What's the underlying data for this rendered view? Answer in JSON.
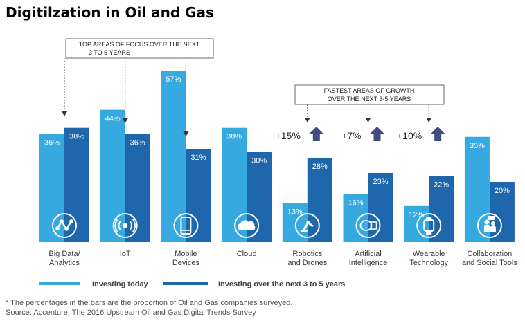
{
  "title": "Digitilzation in Oil and Gas",
  "colors": {
    "today": "#36A9E1",
    "future": "#1F67AD",
    "icon": "#ffffff",
    "arrow": "#3F4E7F",
    "text": "#3a3a3a"
  },
  "chart_data": {
    "type": "bar",
    "categories": [
      [
        "Big Data/",
        "Analytics"
      ],
      [
        "IoT"
      ],
      [
        "Mobile",
        "Devices"
      ],
      [
        "Cloud"
      ],
      [
        "Robotics",
        "and Drones"
      ],
      [
        "Artificial",
        "Intelligence"
      ],
      [
        "Wearable",
        "Technology"
      ],
      [
        "Collaboration",
        "and Social Tools"
      ]
    ],
    "icons": [
      "line-graph-icon",
      "broadcast-icon",
      "mobile-device-icon",
      "cloud-icon",
      "robot-arm-icon",
      "brain-chip-icon",
      "smartwatch-icon",
      "people-chat-icon"
    ],
    "series": [
      {
        "name": "Investing today",
        "values": [
          36,
          44,
          57,
          38,
          13,
          16,
          12,
          35
        ],
        "labels": [
          "36%",
          "44%",
          "57%",
          "38%",
          "13%",
          "16%",
          "12%",
          "35%"
        ]
      },
      {
        "name": "Investing over the next 3 to 5 years",
        "values": [
          38,
          36,
          31,
          30,
          28,
          23,
          22,
          20
        ],
        "labels": [
          "38%",
          "36%",
          "31%",
          "30%",
          "28%",
          "23%",
          "22%",
          "20%"
        ]
      }
    ],
    "growth": [
      {
        "category": "Robotics and Drones",
        "label": "+15%"
      },
      {
        "category": "Artificial Intelligence",
        "label": "+7%"
      },
      {
        "category": "Wearable Technology",
        "label": "+10%"
      }
    ],
    "callouts": {
      "focus": [
        "TOP AREAS OF FOCUS OVER THE NEXT",
        "3 TO 5 YEARS"
      ],
      "growth": [
        "FASTEST AREAS OF GROWTH",
        "OVER THE NEXT 3-5 YEARS"
      ]
    },
    "ylim": [
      0,
      60
    ]
  },
  "footnote": "* The percentages in the bars are the proportion of Oil and Gas companies surveyed.",
  "source": "Source: Accenture, The 2016 Upstream Oil and Gas Digital Trends Survey"
}
